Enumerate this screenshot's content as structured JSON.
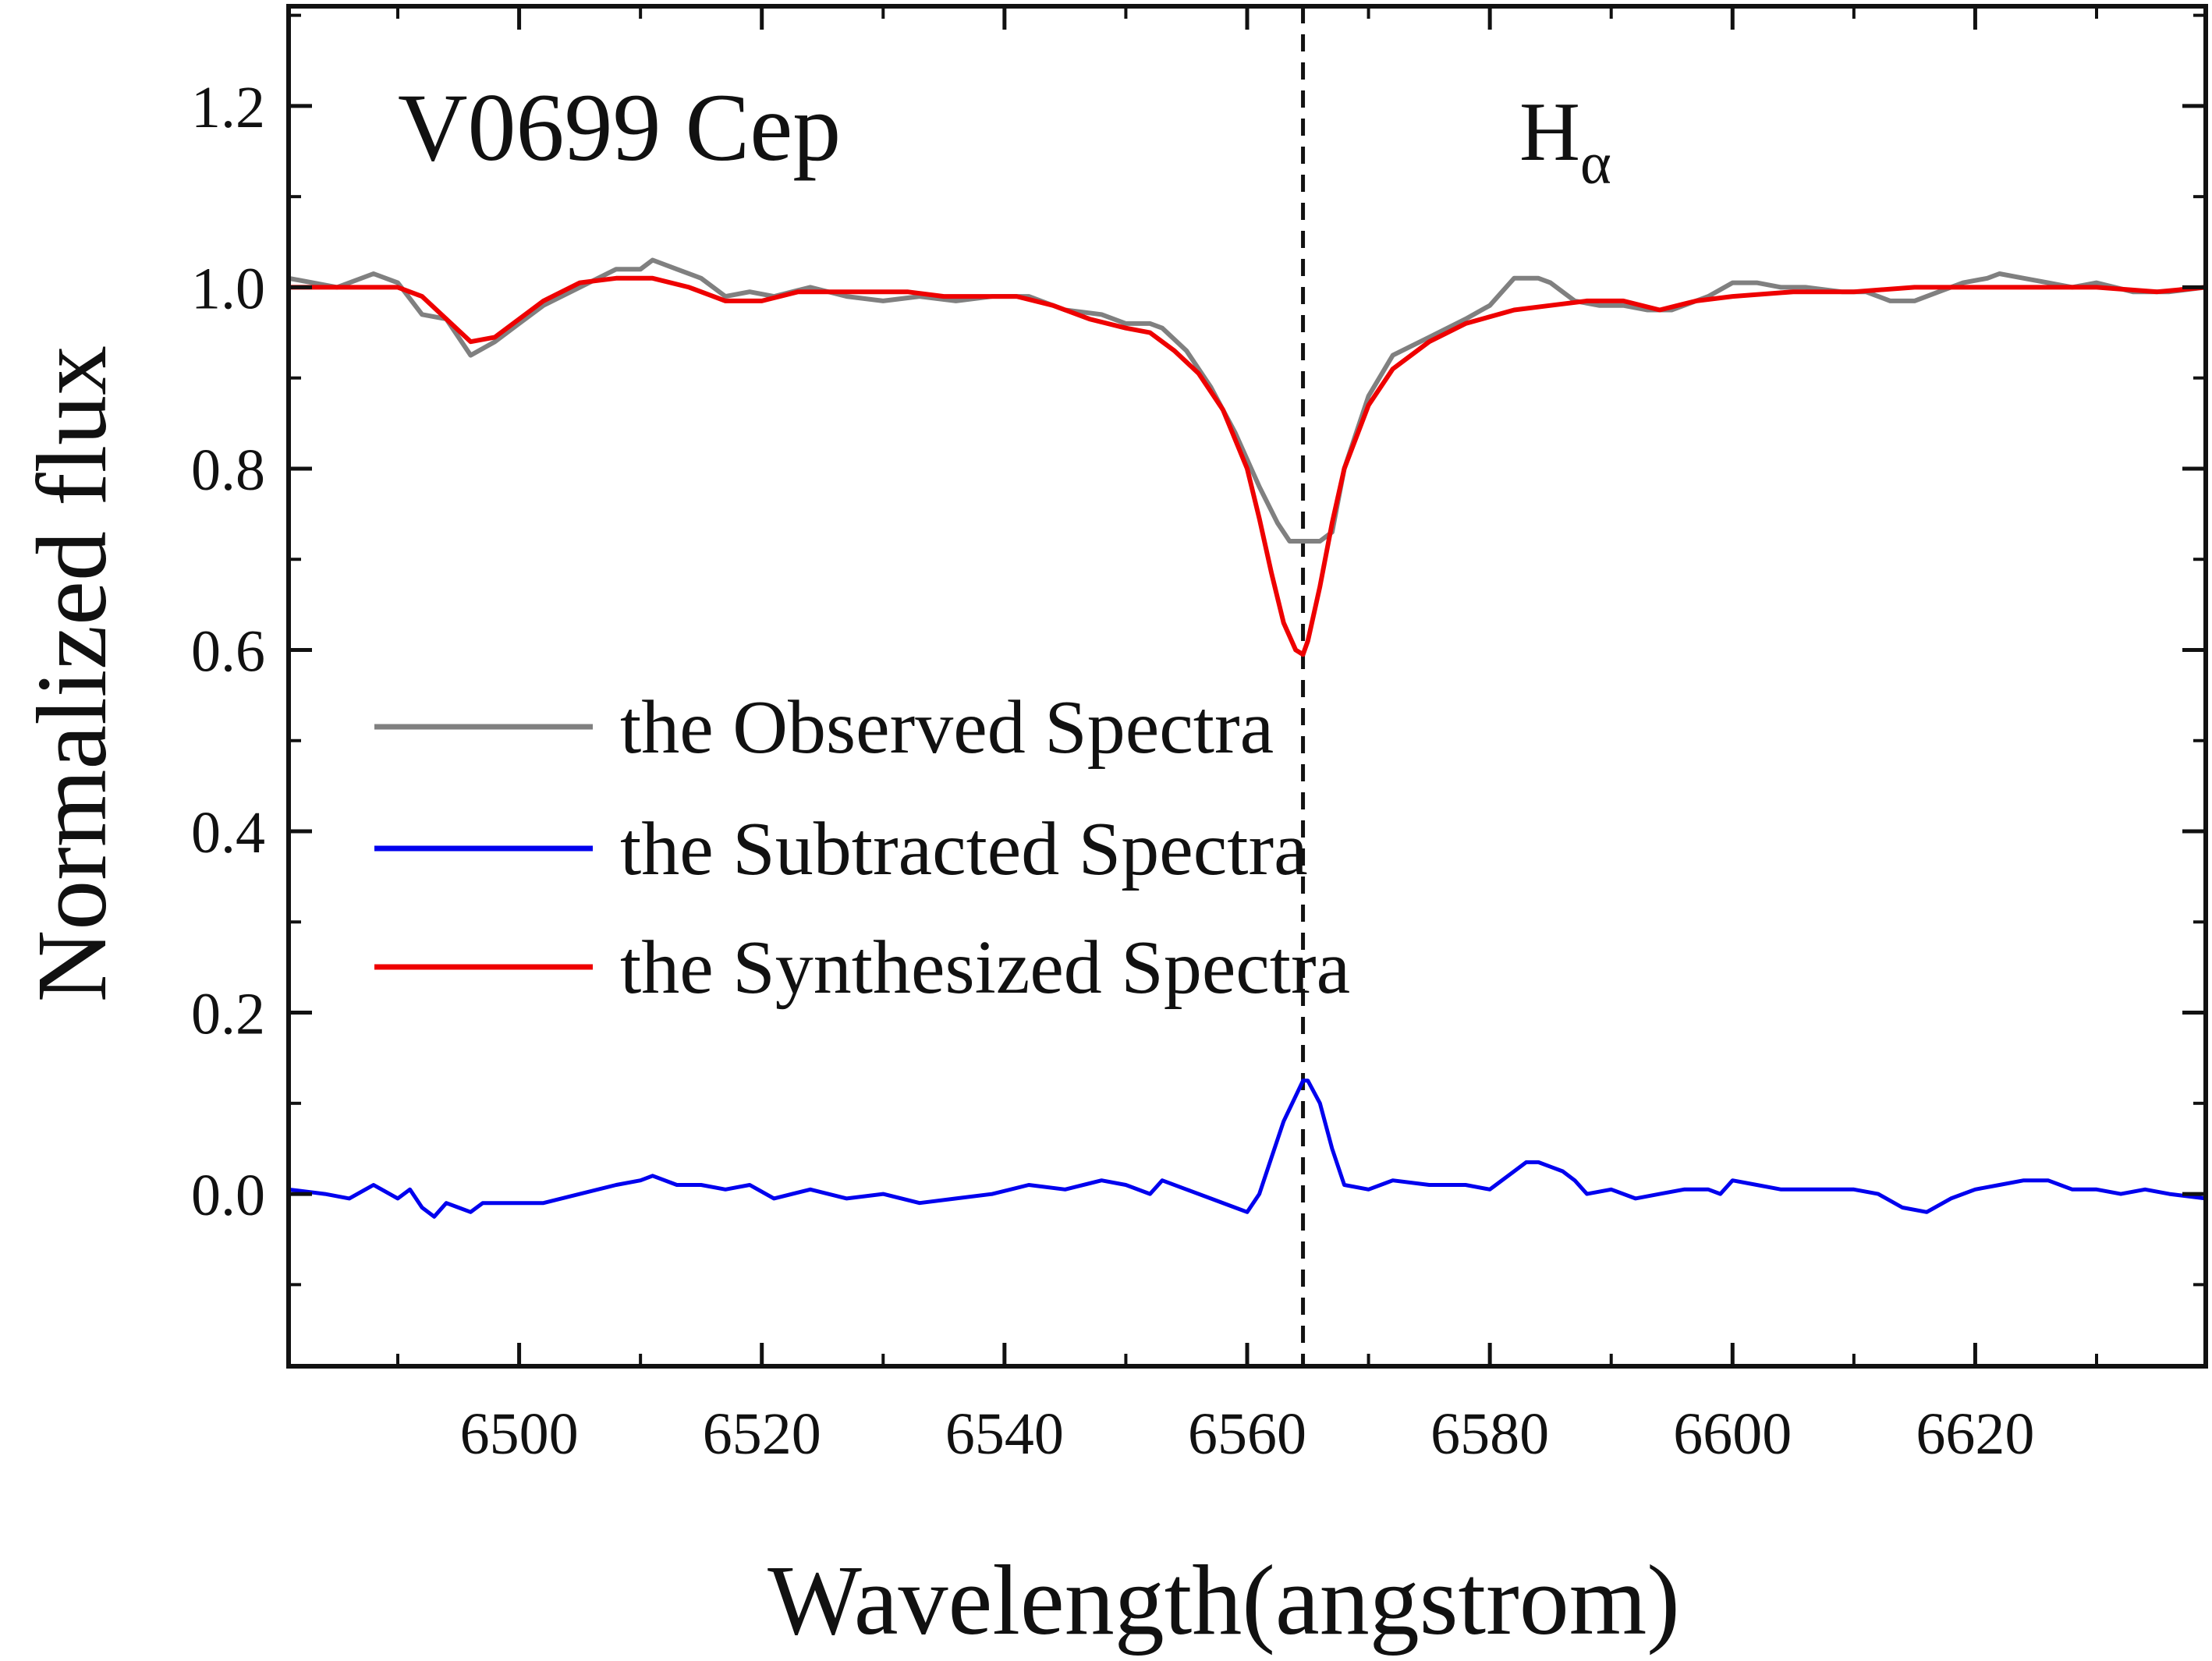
{
  "chart_data": {
    "type": "line",
    "title": "V0699 Cep",
    "line_annotation": {
      "label": "H",
      "subscript": "α",
      "x": 6564.6,
      "style": "dashed"
    },
    "xlabel": "Wavelength(angstrom)",
    "ylabel": "Normalized flux",
    "xlim": [
      6481,
      6639
    ],
    "ylim": [
      -0.19,
      1.31
    ],
    "xticks": [
      6500,
      6520,
      6540,
      6560,
      6580,
      6600,
      6620
    ],
    "xtick_labels": [
      "6500",
      "6520",
      "6540",
      "6560",
      "6580",
      "6600",
      "6620"
    ],
    "yticks": [
      0.0,
      0.2,
      0.4,
      0.6,
      0.8,
      1.0,
      1.2
    ],
    "ytick_labels": [
      "0.0",
      "0.2",
      "0.4",
      "0.6",
      "0.8",
      "1.0",
      "1.2"
    ],
    "legend_position": "center-left",
    "series": [
      {
        "name": "the Observed Spectra",
        "color": "#808080",
        "x": [
          6481,
          6485,
          6488,
          6490,
          6492,
          6494,
          6496,
          6498,
          6500,
          6502,
          6505,
          6508,
          6510,
          6511,
          6513,
          6515,
          6517,
          6519,
          6521,
          6524,
          6527,
          6530,
          6533,
          6536,
          6539,
          6542,
          6545,
          6548,
          6550,
          6552,
          6553,
          6555,
          6557,
          6559,
          6561,
          6562.5,
          6563.5,
          6565,
          6566,
          6567,
          6568,
          6570,
          6572,
          6575,
          6578,
          6580,
          6582,
          6583,
          6584,
          6585,
          6587,
          6589,
          6591,
          6593,
          6595,
          6598,
          6600,
          6602,
          6604,
          6606,
          6609,
          6611,
          6613,
          6615,
          6617,
          6619,
          6621,
          6622,
          6624,
          6626,
          6628,
          6630,
          6633,
          6636,
          6639
        ],
        "values": [
          1.01,
          1.0,
          1.015,
          1.005,
          0.97,
          0.965,
          0.925,
          0.94,
          0.96,
          0.98,
          1.0,
          1.02,
          1.02,
          1.03,
          1.02,
          1.01,
          0.99,
          0.995,
          0.99,
          1.0,
          0.99,
          0.985,
          0.99,
          0.985,
          0.99,
          0.99,
          0.975,
          0.97,
          0.96,
          0.96,
          0.955,
          0.93,
          0.89,
          0.84,
          0.78,
          0.74,
          0.72,
          0.72,
          0.72,
          0.73,
          0.8,
          0.88,
          0.925,
          0.945,
          0.965,
          0.98,
          1.01,
          1.01,
          1.01,
          1.005,
          0.985,
          0.98,
          0.98,
          0.975,
          0.975,
          0.99,
          1.005,
          1.005,
          1.0,
          1.0,
          0.995,
          0.995,
          0.985,
          0.985,
          0.995,
          1.005,
          1.01,
          1.015,
          1.01,
          1.005,
          1.0,
          1.005,
          0.995,
          0.995,
          1.0
        ]
      },
      {
        "name": "the Subtracted Spectra",
        "color": "#0000ee",
        "x": [
          6481,
          6484,
          6486,
          6488,
          6490,
          6491,
          6492,
          6493,
          6494,
          6495,
          6496,
          6497,
          6499,
          6502,
          6505,
          6508,
          6510,
          6511,
          6513,
          6515,
          6517,
          6519,
          6521,
          6524,
          6527,
          6530,
          6533,
          6536,
          6539,
          6542,
          6545,
          6548,
          6550,
          6552,
          6553,
          6555,
          6557,
          6559,
          6560,
          6561,
          6562,
          6563,
          6564.6,
          6565,
          6566,
          6567,
          6568,
          6570,
          6572,
          6575,
          6578,
          6580,
          6582,
          6583,
          6584,
          6585,
          6586,
          6587,
          6588,
          6590,
          6592,
          6594,
          6596,
          6598,
          6599,
          6600,
          6602,
          6604,
          6606,
          6608,
          6610,
          6612,
          6614,
          6616,
          6618,
          6620,
          6622,
          6624,
          6626,
          6628,
          6630,
          6632,
          6634,
          6636,
          6639
        ],
        "values": [
          0.005,
          0.0,
          -0.005,
          0.01,
          -0.005,
          0.005,
          -0.015,
          -0.025,
          -0.01,
          -0.015,
          -0.02,
          -0.01,
          -0.01,
          -0.01,
          0.0,
          0.01,
          0.015,
          0.02,
          0.01,
          0.01,
          0.005,
          0.01,
          -0.005,
          0.005,
          -0.005,
          0.0,
          -0.01,
          -0.005,
          0.0,
          0.01,
          0.005,
          0.015,
          0.01,
          0.0,
          0.015,
          0.005,
          -0.005,
          -0.015,
          -0.02,
          0.0,
          0.04,
          0.08,
          0.125,
          0.125,
          0.1,
          0.05,
          0.01,
          0.005,
          0.015,
          0.01,
          0.01,
          0.005,
          0.025,
          0.035,
          0.035,
          0.03,
          0.025,
          0.015,
          0.0,
          0.005,
          -0.005,
          0.0,
          0.005,
          0.005,
          0.0,
          0.015,
          0.01,
          0.005,
          0.005,
          0.005,
          0.005,
          0.0,
          -0.015,
          -0.02,
          -0.005,
          0.005,
          0.01,
          0.015,
          0.015,
          0.005,
          0.005,
          0.0,
          0.005,
          0.0,
          -0.005
        ]
      },
      {
        "name": "the Synthesized Spectra",
        "color": "#ee0000",
        "x": [
          6481,
          6485,
          6488,
          6490,
          6492,
          6494,
          6496,
          6498,
          6500,
          6502,
          6505,
          6508,
          6511,
          6514,
          6517,
          6520,
          6523,
          6526,
          6529,
          6532,
          6535,
          6538,
          6541,
          6544,
          6547,
          6550,
          6552,
          6554,
          6556,
          6558,
          6560,
          6561,
          6562,
          6563,
          6564,
          6564.6,
          6565,
          6566,
          6567,
          6568,
          6570,
          6572,
          6575,
          6578,
          6582,
          6585,
          6588,
          6591,
          6594,
          6597,
          6600,
          6605,
          6610,
          6615,
          6620,
          6625,
          6630,
          6635,
          6639
        ],
        "values": [
          1.0,
          1.0,
          1.0,
          1.0,
          0.99,
          0.965,
          0.94,
          0.945,
          0.965,
          0.985,
          1.005,
          1.01,
          1.01,
          1.0,
          0.985,
          0.985,
          0.995,
          0.995,
          0.995,
          0.995,
          0.99,
          0.99,
          0.99,
          0.98,
          0.965,
          0.955,
          0.95,
          0.93,
          0.905,
          0.865,
          0.8,
          0.745,
          0.685,
          0.63,
          0.6,
          0.595,
          0.61,
          0.67,
          0.74,
          0.8,
          0.87,
          0.91,
          0.94,
          0.96,
          0.975,
          0.98,
          0.985,
          0.985,
          0.975,
          0.985,
          0.99,
          0.995,
          0.995,
          1.0,
          1.0,
          1.0,
          1.0,
          0.995,
          1.0
        ]
      }
    ]
  }
}
